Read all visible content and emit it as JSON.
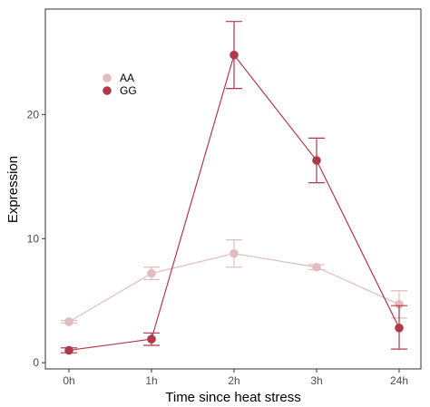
{
  "chart_data": {
    "type": "line",
    "xlabel": "Time since heat stress",
    "ylabel": "Expression",
    "categories": [
      "0h",
      "1h",
      "2h",
      "3h",
      "24h"
    ],
    "ylim": [
      -0.5,
      28.5
    ],
    "yticks": [
      0,
      10,
      20
    ],
    "grid": false,
    "legend": {
      "position": "top-left"
    },
    "series": [
      {
        "name": "AA",
        "color": "#e3bcbf",
        "values": [
          3.3,
          7.2,
          8.8,
          7.7,
          4.7
        ],
        "err_low": [
          3.2,
          6.7,
          7.7,
          7.5,
          3.6
        ],
        "err_high": [
          3.4,
          7.7,
          9.9,
          7.9,
          5.8
        ]
      },
      {
        "name": "GG",
        "color": "#b03a48",
        "values": [
          1.0,
          1.9,
          24.8,
          16.3,
          2.8
        ],
        "err_low": [
          0.8,
          1.4,
          22.1,
          14.5,
          1.1
        ],
        "err_high": [
          1.2,
          2.4,
          27.5,
          18.1,
          4.6
        ]
      }
    ]
  }
}
